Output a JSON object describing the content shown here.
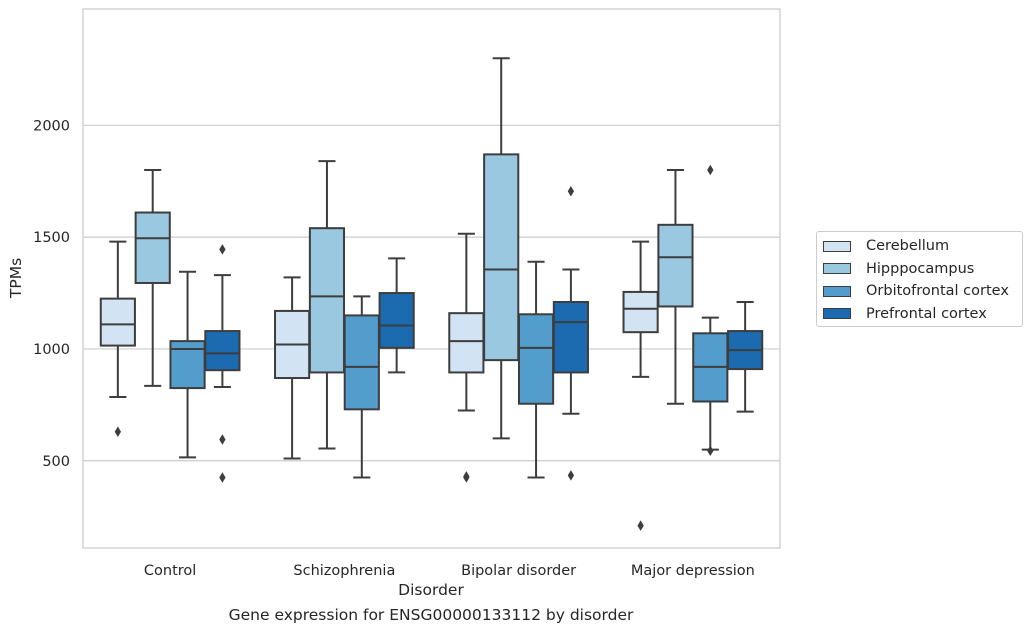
{
  "chart_data": {
    "type": "box",
    "title": "",
    "caption": "Gene expression for ENSG00000133112 by disorder",
    "xlabel": "Disorder",
    "ylabel": "TPMs",
    "ylim": [
      110,
      2520
    ],
    "yticks": [
      500,
      1000,
      1500,
      2000
    ],
    "grid": "horizontal",
    "legend_position": "right",
    "categories": [
      "Control",
      "Schizophrenia",
      "Bipolar disorder",
      "Major depression"
    ],
    "series": [
      {
        "name": "Cerebellum",
        "color": "#d2e3f3",
        "boxes": [
          {
            "whisker_low": 785,
            "q1": 1015,
            "median": 1110,
            "q3": 1225,
            "whisker_high": 1480,
            "outliers": [
              630
            ]
          },
          {
            "whisker_low": 510,
            "q1": 870,
            "median": 1020,
            "q3": 1170,
            "whisker_high": 1320,
            "outliers": []
          },
          {
            "whisker_low": 725,
            "q1": 895,
            "median": 1035,
            "q3": 1160,
            "whisker_high": 1515,
            "outliers": [
              425,
              430
            ]
          },
          {
            "whisker_low": 875,
            "q1": 1075,
            "median": 1180,
            "q3": 1255,
            "whisker_high": 1480,
            "outliers": [
              210
            ]
          }
        ]
      },
      {
        "name": "Hipppocampus",
        "color": "#9ac8e0",
        "boxes": [
          {
            "whisker_low": 835,
            "q1": 1295,
            "median": 1495,
            "q3": 1610,
            "whisker_high": 1800,
            "outliers": []
          },
          {
            "whisker_low": 555,
            "q1": 895,
            "median": 1235,
            "q3": 1540,
            "whisker_high": 1840,
            "outliers": []
          },
          {
            "whisker_low": 600,
            "q1": 950,
            "median": 1355,
            "q3": 1870,
            "whisker_high": 2300,
            "outliers": []
          },
          {
            "whisker_low": 755,
            "q1": 1190,
            "median": 1410,
            "q3": 1555,
            "whisker_high": 1800,
            "outliers": []
          }
        ]
      },
      {
        "name": "Orbitofrontal cortex",
        "color": "#529dcc",
        "boxes": [
          {
            "whisker_low": 515,
            "q1": 825,
            "median": 1000,
            "q3": 1035,
            "whisker_high": 1345,
            "outliers": []
          },
          {
            "whisker_low": 425,
            "q1": 730,
            "median": 920,
            "q3": 1150,
            "whisker_high": 1235,
            "outliers": []
          },
          {
            "whisker_low": 425,
            "q1": 755,
            "median": 1005,
            "q3": 1155,
            "whisker_high": 1390,
            "outliers": []
          },
          {
            "whisker_low": 550,
            "q1": 765,
            "median": 920,
            "q3": 1070,
            "whisker_high": 1140,
            "outliers": [
              545,
              1800
            ]
          }
        ]
      },
      {
        "name": "Prefrontal cortex",
        "color": "#1c6aaf",
        "boxes": [
          {
            "whisker_low": 830,
            "q1": 905,
            "median": 980,
            "q3": 1080,
            "whisker_high": 1330,
            "outliers": [
              425,
              595,
              1445
            ]
          },
          {
            "whisker_low": 895,
            "q1": 1005,
            "median": 1105,
            "q3": 1250,
            "whisker_high": 1405,
            "outliers": []
          },
          {
            "whisker_low": 710,
            "q1": 895,
            "median": 1120,
            "q3": 1210,
            "whisker_high": 1355,
            "outliers": [
              435,
              1705
            ]
          },
          {
            "whisker_low": 720,
            "q1": 910,
            "median": 995,
            "q3": 1080,
            "whisker_high": 1210,
            "outliers": []
          }
        ]
      }
    ]
  }
}
